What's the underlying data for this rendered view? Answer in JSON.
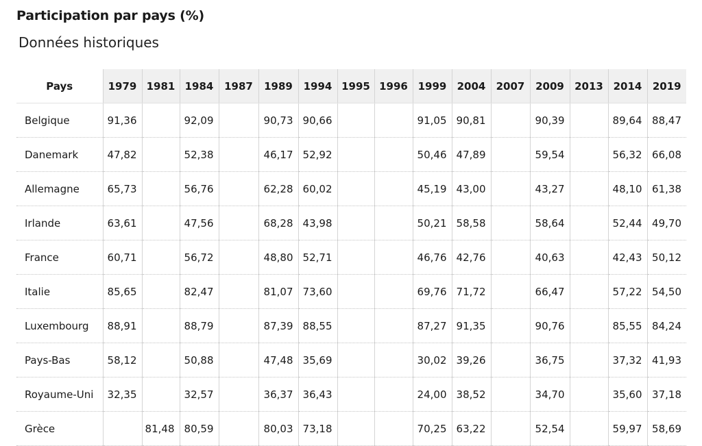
{
  "title": "Participation par pays (%)",
  "subtitle": "Données historiques",
  "table": {
    "country_header": "Pays",
    "years": [
      "1979",
      "1981",
      "1984",
      "1987",
      "1989",
      "1994",
      "1995",
      "1996",
      "1999",
      "2004",
      "2007",
      "2009",
      "2013",
      "2014",
      "2019"
    ],
    "rows": [
      {
        "country": "Belgique",
        "values": [
          "91,36",
          "",
          "92,09",
          "",
          "90,73",
          "90,66",
          "",
          "",
          "91,05",
          "90,81",
          "",
          "90,39",
          "",
          "89,64",
          "88,47"
        ]
      },
      {
        "country": "Danemark",
        "values": [
          "47,82",
          "",
          "52,38",
          "",
          "46,17",
          "52,92",
          "",
          "",
          "50,46",
          "47,89",
          "",
          "59,54",
          "",
          "56,32",
          "66,08"
        ]
      },
      {
        "country": "Allemagne",
        "values": [
          "65,73",
          "",
          "56,76",
          "",
          "62,28",
          "60,02",
          "",
          "",
          "45,19",
          "43,00",
          "",
          "43,27",
          "",
          "48,10",
          "61,38"
        ]
      },
      {
        "country": "Irlande",
        "values": [
          "63,61",
          "",
          "47,56",
          "",
          "68,28",
          "43,98",
          "",
          "",
          "50,21",
          "58,58",
          "",
          "58,64",
          "",
          "52,44",
          "49,70"
        ]
      },
      {
        "country": "France",
        "values": [
          "60,71",
          "",
          "56,72",
          "",
          "48,80",
          "52,71",
          "",
          "",
          "46,76",
          "42,76",
          "",
          "40,63",
          "",
          "42,43",
          "50,12"
        ]
      },
      {
        "country": "Italie",
        "values": [
          "85,65",
          "",
          "82,47",
          "",
          "81,07",
          "73,60",
          "",
          "",
          "69,76",
          "71,72",
          "",
          "66,47",
          "",
          "57,22",
          "54,50"
        ]
      },
      {
        "country": "Luxembourg",
        "values": [
          "88,91",
          "",
          "88,79",
          "",
          "87,39",
          "88,55",
          "",
          "",
          "87,27",
          "91,35",
          "",
          "90,76",
          "",
          "85,55",
          "84,24"
        ]
      },
      {
        "country": "Pays-Bas",
        "values": [
          "58,12",
          "",
          "50,88",
          "",
          "47,48",
          "35,69",
          "",
          "",
          "30,02",
          "39,26",
          "",
          "36,75",
          "",
          "37,32",
          "41,93"
        ]
      },
      {
        "country": "Royaume-Uni",
        "values": [
          "32,35",
          "",
          "32,57",
          "",
          "36,37",
          "36,43",
          "",
          "",
          "24,00",
          "38,52",
          "",
          "34,70",
          "",
          "35,60",
          "37,18"
        ]
      },
      {
        "country": "Grèce",
        "values": [
          "",
          "81,48",
          "80,59",
          "",
          "80,03",
          "73,18",
          "",
          "",
          "70,25",
          "63,22",
          "",
          "52,54",
          "",
          "59,97",
          "58,69"
        ]
      }
    ]
  }
}
